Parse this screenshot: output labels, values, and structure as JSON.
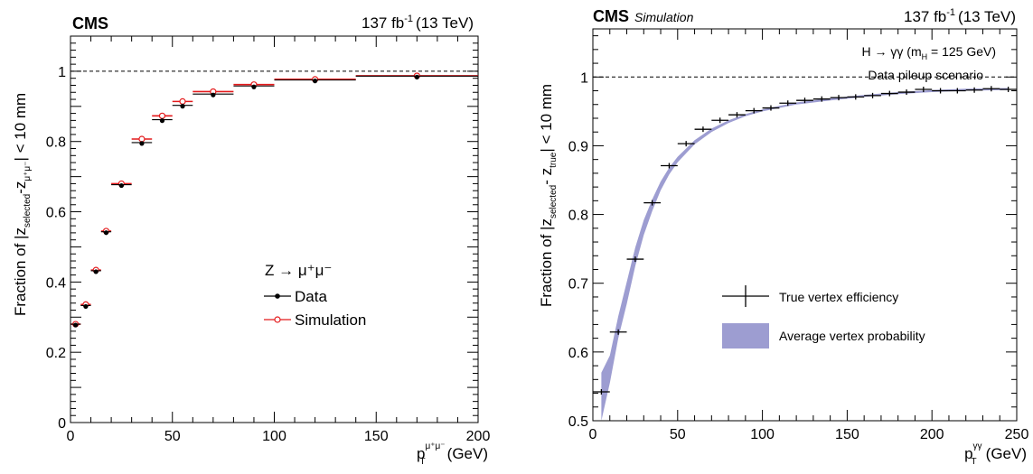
{
  "chart_data": [
    {
      "type": "scatter",
      "experiment": "CMS",
      "subtitle": "",
      "lumi_label": "137 fb",
      "lumi_sup": "-1",
      "energy_label": "(13 TeV)",
      "xlabel": "p",
      "xlabel_sub": "T",
      "xlabel_sup": "μ⁺μ⁻",
      "xlabel_unit": "(GeV)",
      "ylabel_pre": "Fraction of |z",
      "ylabel_sub1": "selected",
      "ylabel_mid": "-z",
      "ylabel_sub2": "μ⁺μ⁻",
      "ylabel_post": "| < 10 mm",
      "xlim": [
        0,
        200
      ],
      "ylim": [
        0,
        1.1
      ],
      "xticks": [
        "0",
        "50",
        "100",
        "150",
        "200"
      ],
      "yticks": [
        "0",
        "0.2",
        "0.4",
        "0.6",
        "0.8",
        "1"
      ],
      "reference_line": 1,
      "legend_title": "Z → μ⁺μ⁻",
      "legend_position": "center-right",
      "series": [
        {
          "name": "Data",
          "color": "#000000",
          "marker": "filled-circle",
          "x": [
            2.5,
            7.5,
            12.5,
            17.5,
            25,
            35,
            45,
            55,
            70,
            90,
            120,
            170
          ],
          "xerr": [
            2.5,
            2.5,
            2.5,
            2.5,
            5,
            5,
            5,
            5,
            10,
            10,
            20,
            30
          ],
          "y": [
            0.28,
            0.333,
            0.432,
            0.543,
            0.677,
            0.797,
            0.862,
            0.903,
            0.935,
            0.958,
            0.975,
            0.986
          ]
        },
        {
          "name": "Simulation",
          "color": "#e41a1c",
          "marker": "open-circle",
          "x": [
            2.5,
            7.5,
            12.5,
            17.5,
            25,
            35,
            45,
            55,
            70,
            90,
            120,
            170
          ],
          "xerr": [
            2.5,
            2.5,
            2.5,
            2.5,
            5,
            5,
            5,
            5,
            10,
            10,
            20,
            30
          ],
          "y": [
            0.28,
            0.336,
            0.434,
            0.545,
            0.68,
            0.807,
            0.873,
            0.914,
            0.942,
            0.962,
            0.977,
            0.987
          ]
        }
      ]
    },
    {
      "type": "line",
      "experiment": "CMS",
      "subtitle": "Simulation",
      "lumi_label": "137 fb",
      "lumi_sup": "-1",
      "energy_label": "(13 TeV)",
      "xlabel": "p",
      "xlabel_sub": "T",
      "xlabel_sup": "γγ",
      "xlabel_unit": "(GeV)",
      "ylabel_pre": "Fraction of |z",
      "ylabel_sub1": "selected",
      "ylabel_mid": "- z",
      "ylabel_sub2": "true",
      "ylabel_post": "| < 10 mm",
      "xlim": [
        0,
        250
      ],
      "ylim": [
        0.5,
        1.07
      ],
      "xticks": [
        "0",
        "50",
        "100",
        "150",
        "200",
        "250"
      ],
      "yticks": [
        "0.5",
        "0.6",
        "0.7",
        "0.8",
        "0.9",
        "1"
      ],
      "reference_line": 1,
      "annotation_process": "H → γγ (m",
      "annotation_process_sub": "H",
      "annotation_process_post": " = 125 GeV)",
      "annotation_scenario": "Data pileup scenario",
      "legend_position": "center-right",
      "legend_entries": [
        "True vertex efficiency",
        "Average vertex probability"
      ],
      "band_color": "#9d9dd1",
      "series": [
        {
          "name": "True vertex efficiency",
          "color": "#000000",
          "marker": "none",
          "x": [
            5,
            15,
            25,
            35,
            45,
            55,
            65,
            75,
            85,
            95,
            105,
            115,
            125,
            135,
            145,
            155,
            165,
            175,
            185,
            195,
            205,
            215,
            225,
            235,
            245
          ],
          "xerr": 5,
          "y": [
            0.542,
            0.629,
            0.735,
            0.817,
            0.871,
            0.903,
            0.924,
            0.937,
            0.945,
            0.951,
            0.955,
            0.962,
            0.966,
            0.968,
            0.97,
            0.971,
            0.973,
            0.976,
            0.978,
            0.982,
            0.98,
            0.98,
            0.981,
            0.983,
            0.982
          ]
        },
        {
          "name": "Average vertex probability",
          "color": "#9d9dd1",
          "x": [
            5,
            10,
            15,
            20,
            25,
            30,
            35,
            40,
            45,
            50,
            60,
            70,
            80,
            90,
            100,
            120,
            140,
            160,
            180,
            200,
            220,
            245
          ],
          "y_low": [
            0.5,
            0.555,
            0.62,
            0.67,
            0.725,
            0.77,
            0.805,
            0.835,
            0.858,
            0.876,
            0.902,
            0.92,
            0.933,
            0.943,
            0.95,
            0.96,
            0.966,
            0.971,
            0.975,
            0.978,
            0.98,
            0.981
          ],
          "y_high": [
            0.57,
            0.595,
            0.652,
            0.702,
            0.752,
            0.792,
            0.822,
            0.848,
            0.868,
            0.884,
            0.908,
            0.925,
            0.937,
            0.946,
            0.953,
            0.963,
            0.969,
            0.974,
            0.978,
            0.981,
            0.983,
            0.984
          ]
        }
      ]
    }
  ]
}
